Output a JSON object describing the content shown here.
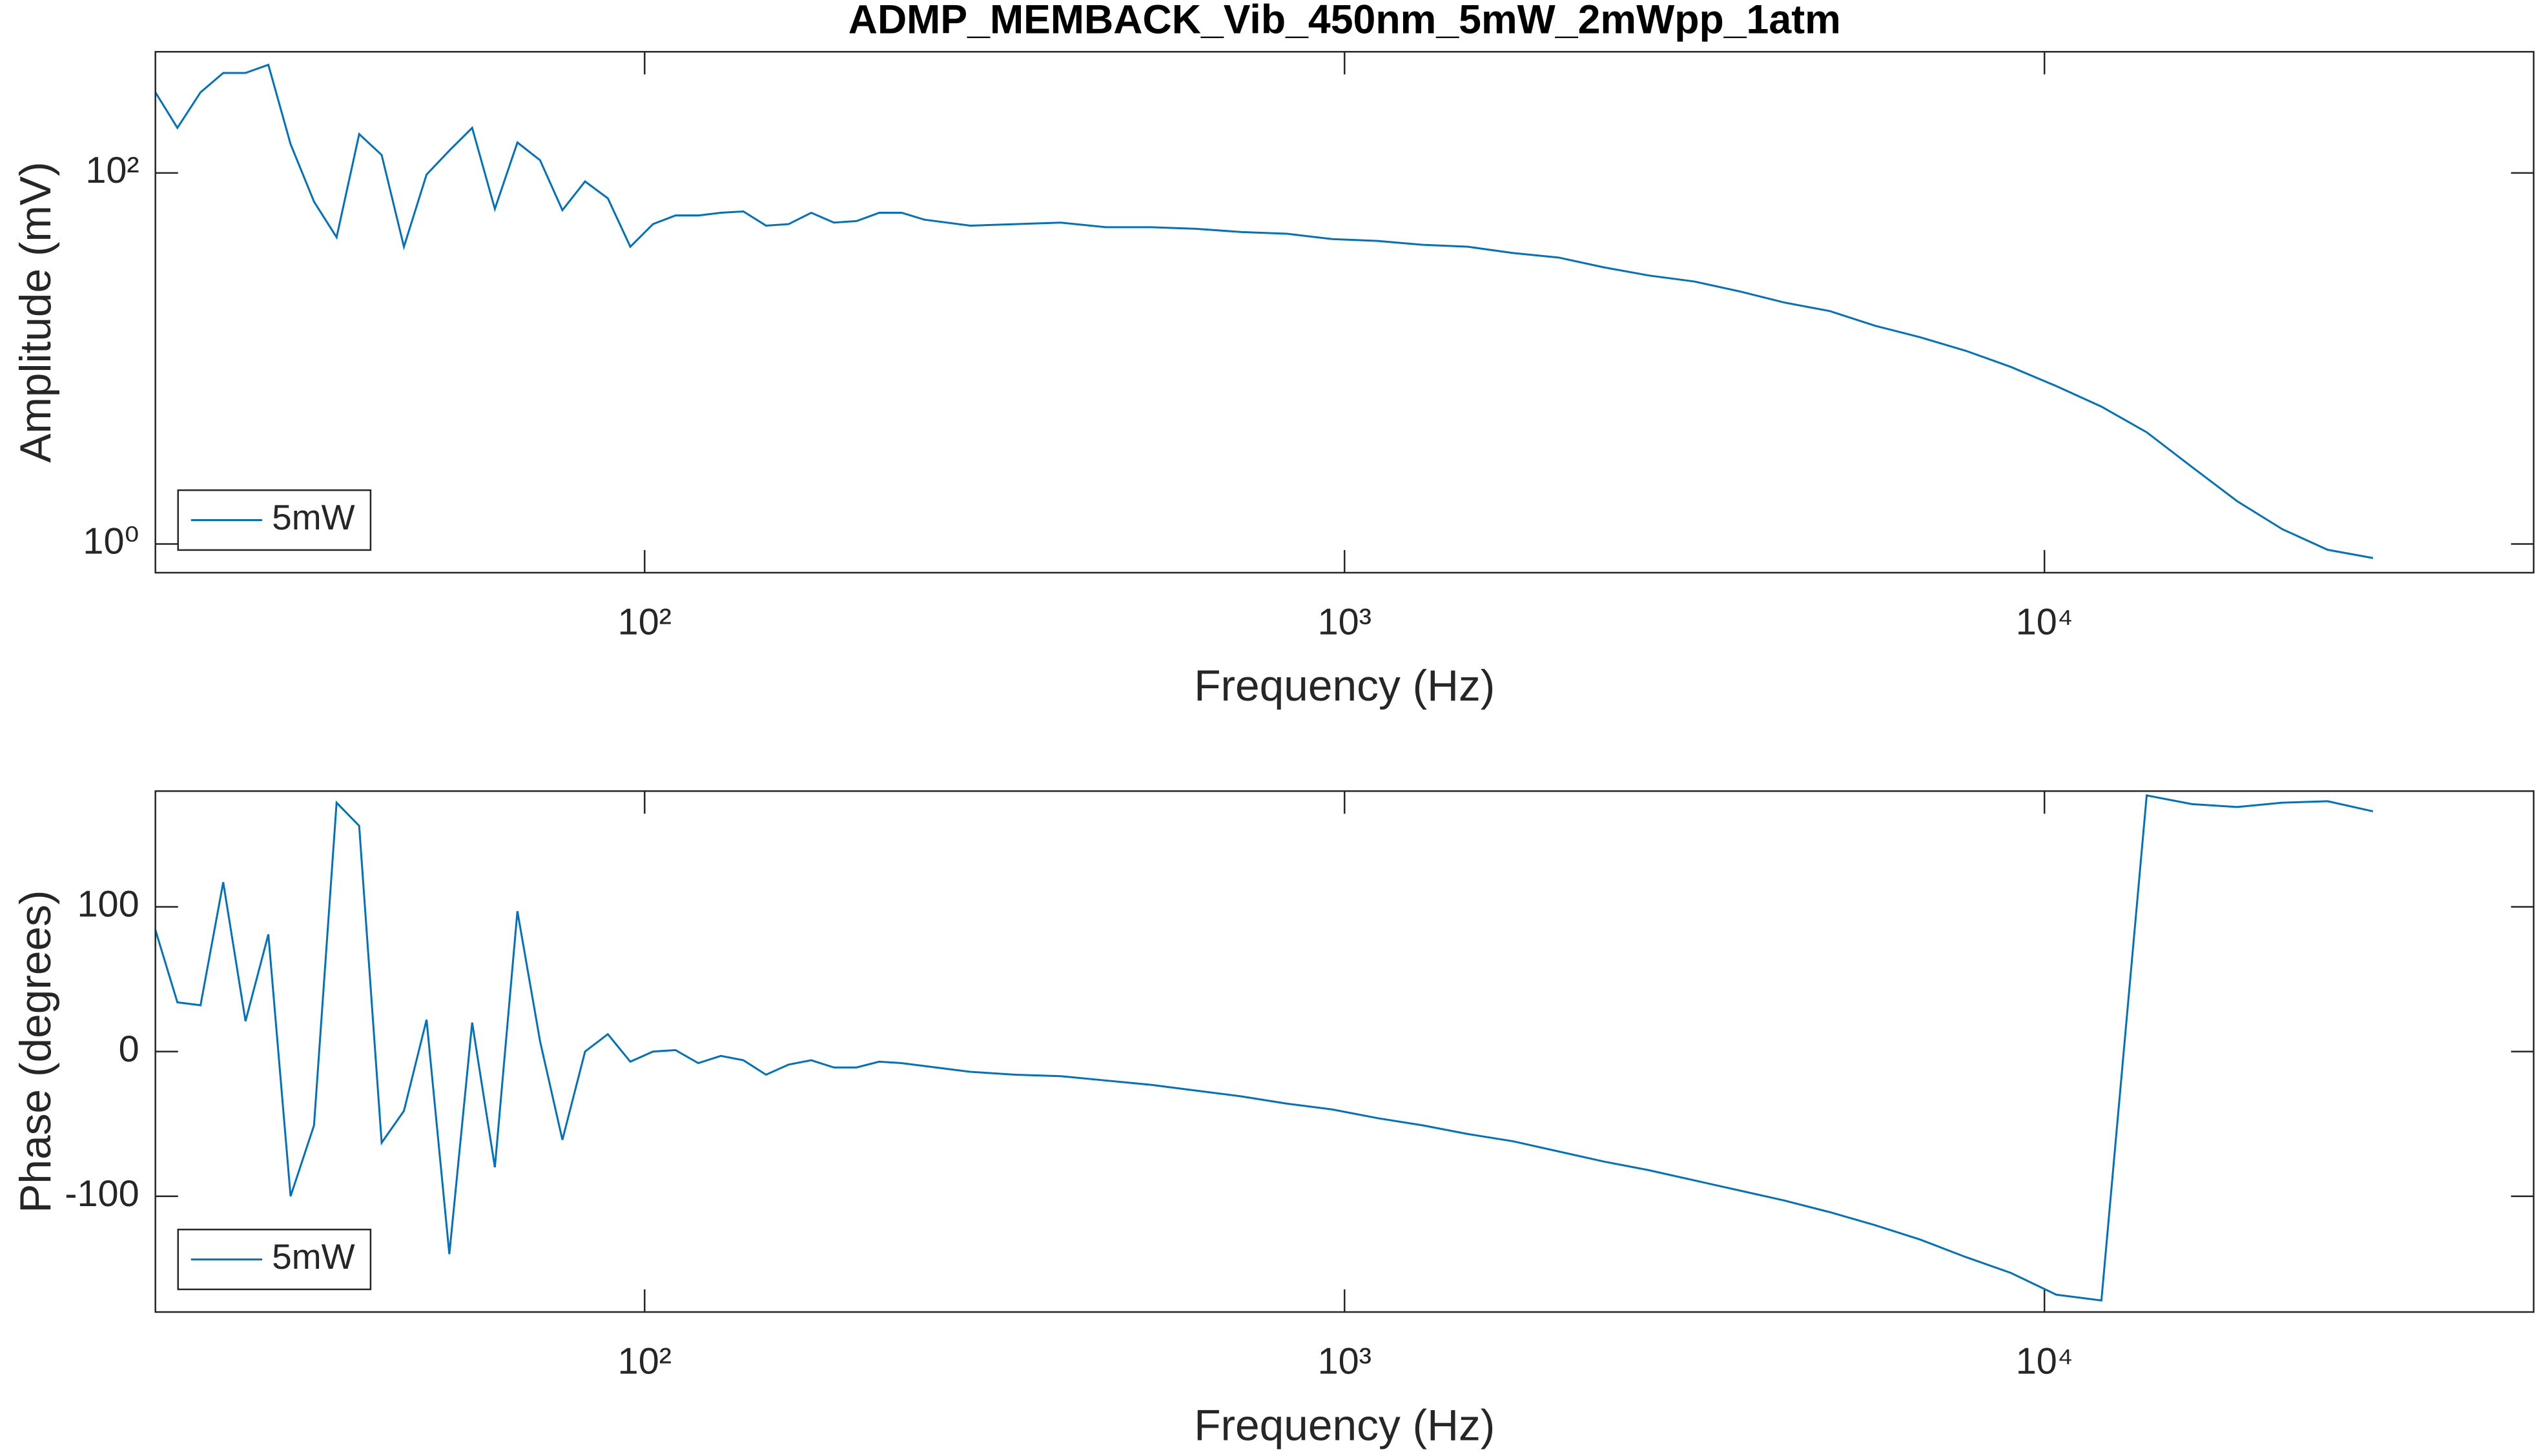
{
  "chart_data": [
    {
      "type": "line",
      "title": "ADMP_MEMBACK_Vib_450nm_5mW_2mWpp_1atm",
      "xlabel": "Frequency (Hz)",
      "ylabel": "Amplitude (mV)",
      "xscale": "log",
      "yscale": "log",
      "legend": "lower left",
      "x": [
        20.0,
        21.5,
        23.2,
        25.0,
        26.9,
        29.0,
        31.2,
        33.7,
        36.3,
        39.1,
        42.1,
        45.3,
        48.8,
        52.6,
        56.7,
        61.1,
        65.8,
        70.9,
        76.3,
        82.2,
        88.6,
        95.4,
        102.8,
        110.7,
        119.3,
        128.5,
        138.4,
        149.1,
        160.6,
        173.0,
        186.4,
        200.8,
        216.3,
        233.0,
        251,
        292,
        339,
        393,
        456,
        529,
        614,
        713,
        827,
        960,
        1114,
        1293,
        1501,
        1741,
        2021,
        2346,
        2722,
        3159,
        3666,
        4255,
        4937,
        5730,
        6650,
        7718,
        8956,
        10394,
        12061,
        13998,
        16244,
        18852,
        21883,
        25388,
        29469
      ],
      "series": [
        {
          "name": "5mW",
          "color": "#0072bd",
          "values": [
            272,
            175,
            272,
            346,
            346,
            383,
            143,
            70,
            45,
            162,
            125,
            40,
            98,
            132,
            175,
            64,
            146,
            117,
            63,
            90,
            73,
            40,
            53,
            59,
            59,
            61,
            62,
            52,
            53,
            61,
            54,
            55,
            61,
            61,
            56,
            52,
            53,
            54,
            51,
            51,
            50,
            48,
            47,
            44,
            43,
            41,
            40,
            37,
            35,
            31,
            28,
            26,
            23,
            20,
            18,
            15,
            13,
            11,
            9.0,
            7.1,
            5.5,
            4.0,
            2.6,
            1.7,
            1.2,
            0.93,
            0.84
          ]
        }
      ],
      "xlim": [
        20,
        50000
      ],
      "xticks": [
        {
          "value": 100,
          "label": "10²"
        },
        {
          "value": 1000,
          "label": "10³"
        },
        {
          "value": 10000,
          "label": "10⁴"
        }
      ],
      "ylim": [
        0.7,
        450
      ],
      "yticks": [
        {
          "value": 1,
          "label": "10⁰"
        },
        {
          "value": 100,
          "label": "10²"
        }
      ]
    },
    {
      "type": "line",
      "xlabel": "Frequency (Hz)",
      "ylabel": "Phase (degrees)",
      "xscale": "log",
      "yscale": "linear",
      "legend": "lower left",
      "x": [
        20.0,
        21.5,
        23.2,
        25.0,
        26.9,
        29.0,
        31.2,
        33.7,
        36.3,
        39.1,
        42.1,
        45.3,
        48.8,
        52.6,
        56.7,
        61.1,
        65.8,
        70.9,
        76.3,
        82.2,
        88.6,
        95.4,
        102.8,
        110.7,
        119.3,
        128.5,
        138.4,
        149.1,
        160.6,
        173.0,
        186.4,
        200.8,
        216.3,
        233.0,
        251,
        292,
        339,
        393,
        456,
        529,
        614,
        713,
        827,
        960,
        1114,
        1293,
        1501,
        1741,
        2021,
        2346,
        2722,
        3159,
        3666,
        4255,
        4937,
        5730,
        6650,
        7718,
        8956,
        10394,
        12061,
        13998,
        16244,
        18852,
        21883,
        25388,
        29469
      ],
      "series": [
        {
          "name": "5mW",
          "color": "#0072bd",
          "values": [
            84,
            34,
            32,
            117,
            21,
            81,
            -100,
            -51,
            172,
            156,
            -63,
            -41,
            22,
            -140,
            20,
            -80,
            97,
            7,
            -61,
            0,
            12,
            -7,
            0,
            1,
            -8,
            -3,
            -6,
            -16,
            -9,
            -6,
            -11,
            -11,
            -7,
            -8,
            -10,
            -14,
            -16,
            -17,
            -20,
            -23,
            -27,
            -31,
            -36,
            -40,
            -46,
            -51,
            -57,
            -62,
            -69,
            -76,
            -82,
            -89,
            -96,
            -103,
            -111,
            -120,
            -130,
            -142,
            -153,
            -168,
            -172,
            177,
            171,
            169,
            172,
            173,
            166
          ]
        }
      ],
      "xlim": [
        20,
        50000
      ],
      "xticks": [
        {
          "value": 100,
          "label": "10²"
        },
        {
          "value": 1000,
          "label": "10³"
        },
        {
          "value": 10000,
          "label": "10⁴"
        }
      ],
      "ylim": [
        -180,
        180
      ],
      "yticks": [
        -100,
        0,
        100
      ]
    }
  ]
}
